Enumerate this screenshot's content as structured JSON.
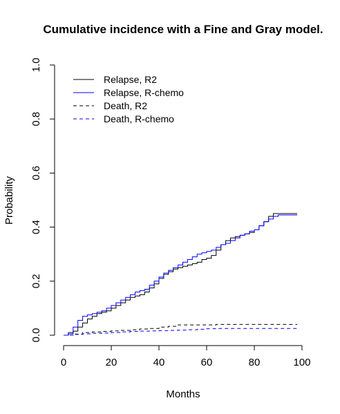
{
  "chart_data": {
    "type": "line",
    "title": "Cumulative incidence with a Fine and Gray model.",
    "xlabel": "Months",
    "ylabel": "Probability",
    "xlim": [
      0,
      100
    ],
    "ylim": [
      0,
      1.0
    ],
    "x_ticks": [
      "0",
      "20",
      "40",
      "60",
      "80",
      "100"
    ],
    "y_ticks": [
      "0.0",
      "0.2",
      "0.4",
      "0.6",
      "0.8",
      "1.0"
    ],
    "grid": false,
    "legend_position": "top-left",
    "series": [
      {
        "name": "Relapse, R2",
        "color": "#000000",
        "dash": "solid",
        "x": [
          0,
          2,
          4,
          6,
          8,
          10,
          12,
          14,
          16,
          18,
          20,
          22,
          24,
          26,
          28,
          30,
          32,
          34,
          36,
          38,
          40,
          42,
          44,
          46,
          48,
          50,
          52,
          54,
          56,
          58,
          60,
          62,
          64,
          66,
          68,
          70,
          72,
          74,
          76,
          78,
          80,
          82,
          84,
          86,
          88,
          98
        ],
        "y": [
          0,
          0.005,
          0.015,
          0.03,
          0.045,
          0.06,
          0.07,
          0.08,
          0.085,
          0.09,
          0.1,
          0.11,
          0.12,
          0.13,
          0.14,
          0.145,
          0.15,
          0.16,
          0.175,
          0.19,
          0.21,
          0.225,
          0.235,
          0.245,
          0.25,
          0.255,
          0.26,
          0.265,
          0.27,
          0.28,
          0.285,
          0.295,
          0.315,
          0.335,
          0.35,
          0.36,
          0.365,
          0.37,
          0.375,
          0.38,
          0.39,
          0.405,
          0.42,
          0.44,
          0.45,
          0.45
        ]
      },
      {
        "name": "Relapse, R-chemo",
        "color": "#0000ff",
        "dash": "solid",
        "x": [
          0,
          2,
          4,
          6,
          8,
          10,
          12,
          14,
          16,
          18,
          20,
          22,
          24,
          26,
          28,
          30,
          32,
          34,
          36,
          38,
          40,
          42,
          44,
          46,
          48,
          50,
          52,
          54,
          56,
          58,
          60,
          62,
          64,
          66,
          68,
          70,
          72,
          74,
          76,
          78,
          80,
          82,
          84,
          86,
          88,
          90,
          98
        ],
        "y": [
          0,
          0.01,
          0.03,
          0.055,
          0.07,
          0.075,
          0.08,
          0.085,
          0.09,
          0.1,
          0.11,
          0.12,
          0.13,
          0.14,
          0.15,
          0.16,
          0.165,
          0.17,
          0.185,
          0.2,
          0.215,
          0.23,
          0.24,
          0.25,
          0.26,
          0.27,
          0.28,
          0.29,
          0.3,
          0.305,
          0.31,
          0.315,
          0.325,
          0.335,
          0.34,
          0.35,
          0.36,
          0.37,
          0.375,
          0.385,
          0.39,
          0.405,
          0.42,
          0.43,
          0.44,
          0.445,
          0.445
        ]
      },
      {
        "name": "Death, R2",
        "color": "#000000",
        "dash": "dashed",
        "x": [
          0,
          4,
          8,
          12,
          16,
          20,
          24,
          28,
          32,
          36,
          40,
          44,
          48,
          52,
          56,
          60,
          64,
          68,
          72,
          80,
          88,
          98
        ],
        "y": [
          0,
          0.004,
          0.01,
          0.012,
          0.014,
          0.016,
          0.018,
          0.02,
          0.023,
          0.025,
          0.03,
          0.033,
          0.038,
          0.038,
          0.038,
          0.038,
          0.04,
          0.04,
          0.04,
          0.04,
          0.04,
          0.04
        ]
      },
      {
        "name": "Death, R-chemo",
        "color": "#0000ff",
        "dash": "dashed",
        "x": [
          0,
          4,
          8,
          12,
          16,
          20,
          24,
          28,
          32,
          36,
          40,
          44,
          48,
          52,
          56,
          60,
          64,
          68,
          72,
          80,
          88,
          98
        ],
        "y": [
          0,
          0.003,
          0.005,
          0.007,
          0.008,
          0.01,
          0.012,
          0.014,
          0.015,
          0.016,
          0.017,
          0.018,
          0.019,
          0.02,
          0.022,
          0.024,
          0.025,
          0.025,
          0.025,
          0.025,
          0.025,
          0.025
        ]
      }
    ]
  }
}
